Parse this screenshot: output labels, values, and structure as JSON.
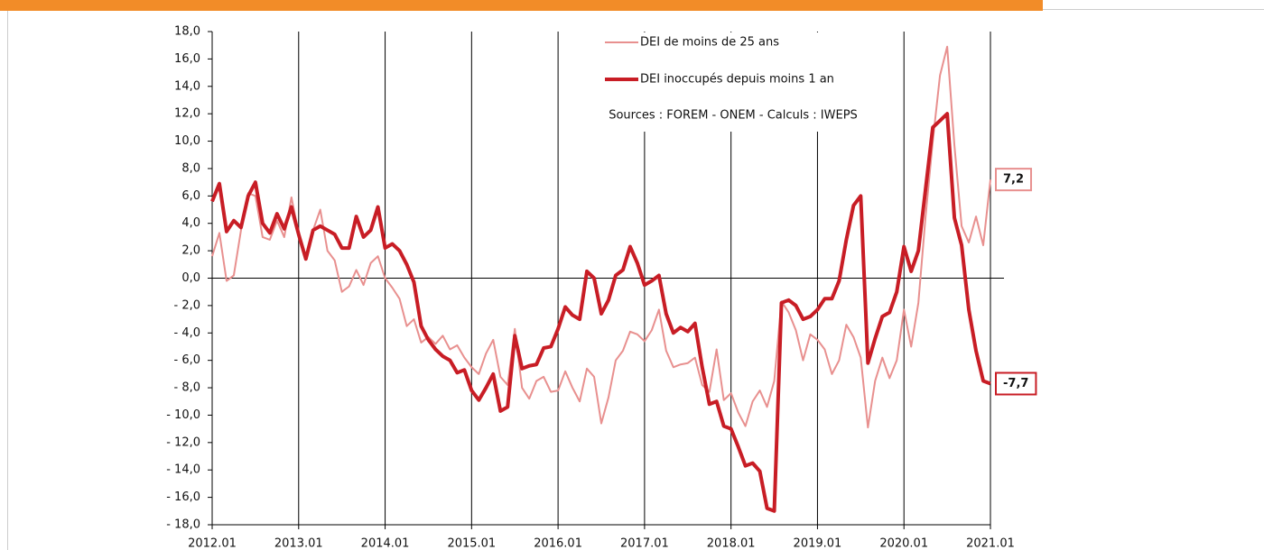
{
  "chart_data": {
    "type": "line",
    "categories": [
      "2012.01",
      null,
      null,
      null,
      null,
      null,
      null,
      null,
      null,
      null,
      null,
      null,
      "2013.01",
      null,
      null,
      null,
      null,
      null,
      null,
      null,
      null,
      null,
      null,
      null,
      "2014.01",
      null,
      null,
      null,
      null,
      null,
      null,
      null,
      null,
      null,
      null,
      null,
      "2015.01",
      null,
      null,
      null,
      null,
      null,
      null,
      null,
      null,
      null,
      null,
      null,
      "2016.01",
      null,
      null,
      null,
      null,
      null,
      null,
      null,
      null,
      null,
      null,
      null,
      "2017.01",
      null,
      null,
      null,
      null,
      null,
      null,
      null,
      null,
      null,
      null,
      null,
      "2018.01",
      null,
      null,
      null,
      null,
      null,
      null,
      null,
      null,
      null,
      null,
      null,
      "2019.01",
      null,
      null,
      null,
      null,
      null,
      null,
      null,
      null,
      null,
      null,
      null,
      "2020.01",
      null,
      null,
      null,
      null,
      null,
      null,
      null,
      null,
      null,
      null,
      null,
      "2021.01"
    ],
    "series": [
      {
        "name": "DEI de moins de 25 ans",
        "color": "#e8908f",
        "width": 2,
        "values": [
          1.6,
          3.3,
          -0.2,
          0.2,
          3.5,
          6.2,
          6.0,
          3.0,
          2.8,
          4.2,
          3.0,
          5.9,
          3.3,
          1.5,
          3.5,
          5.0,
          2.0,
          1.3,
          -1.0,
          -0.6,
          0.6,
          -0.5,
          1.1,
          1.6,
          0.0,
          -0.7,
          -1.5,
          -3.5,
          -3.0,
          -4.7,
          -4.3,
          -4.8,
          -4.2,
          -5.2,
          -4.9,
          -5.8,
          -6.5,
          -7.0,
          -5.5,
          -4.5,
          -7.2,
          -7.8,
          -3.7,
          -8.0,
          -8.8,
          -7.5,
          -7.2,
          -8.3,
          -8.2,
          -6.8,
          -8.0,
          -9.0,
          -6.6,
          -7.2,
          -10.6,
          -8.7,
          -6.0,
          -5.3,
          -3.9,
          -4.1,
          -4.6,
          -3.8,
          -2.3,
          -5.3,
          -6.5,
          -6.3,
          -6.2,
          -5.8,
          -7.8,
          -8.3,
          -5.2,
          -8.9,
          -8.4,
          -9.8,
          -10.8,
          -9.0,
          -8.2,
          -9.4,
          -7.5,
          -1.7,
          -2.5,
          -3.8,
          -6.0,
          -4.1,
          -4.5,
          -5.2,
          -7.0,
          -6.0,
          -3.4,
          -4.3,
          -5.8,
          -10.9,
          -7.5,
          -5.8,
          -7.3,
          -6.0,
          -2.3,
          -5.0,
          -1.8,
          4.5,
          10.0,
          14.8,
          16.9,
          9.7,
          3.8,
          2.6,
          4.5,
          2.4,
          7.2
        ],
        "value_labels": [
          null,
          null,
          null,
          null,
          null,
          null,
          null,
          null,
          null,
          null,
          null,
          null,
          null,
          null,
          null,
          null,
          null,
          null,
          null,
          null,
          null,
          null,
          null,
          null,
          null,
          null,
          null,
          null,
          null,
          null,
          null,
          null,
          null,
          null,
          null,
          null,
          null,
          null,
          null,
          null,
          null,
          null,
          null,
          null,
          null,
          null,
          null,
          null,
          null,
          null,
          null,
          null,
          null,
          null,
          null,
          null,
          null,
          null,
          null,
          null,
          null,
          null,
          null,
          null,
          null,
          null,
          null,
          null,
          null,
          null,
          null,
          null,
          null,
          null,
          null,
          null,
          null,
          null,
          null,
          null,
          null,
          null,
          null,
          null,
          null,
          null,
          null,
          null,
          null,
          null,
          null,
          null,
          null,
          null,
          null,
          null,
          null,
          null,
          null,
          null,
          null,
          null,
          null,
          null,
          null,
          null,
          null,
          null,
          "7,2"
        ]
      },
      {
        "name": "DEI inoccupés depuis moins 1 an",
        "color": "#c81d25",
        "width": 4,
        "values": [
          5.6,
          6.9,
          3.4,
          4.2,
          3.7,
          6.0,
          7.0,
          4.0,
          3.3,
          4.7,
          3.6,
          5.2,
          3.2,
          1.4,
          3.5,
          3.8,
          3.5,
          3.2,
          2.2,
          2.2,
          4.5,
          3.0,
          3.5,
          5.2,
          2.2,
          2.5,
          2.0,
          1.0,
          -0.3,
          -3.5,
          -4.5,
          -5.2,
          -5.7,
          -6.0,
          -6.9,
          -6.7,
          -8.2,
          -8.9,
          -8.0,
          -7.0,
          -9.7,
          -9.4,
          -4.2,
          -6.6,
          -6.4,
          -6.3,
          -5.1,
          -5.0,
          -3.7,
          -2.1,
          -2.7,
          -3.0,
          0.5,
          0.0,
          -2.6,
          -1.6,
          0.2,
          0.6,
          2.3,
          1.1,
          -0.5,
          -0.2,
          0.2,
          -2.6,
          -4.0,
          -3.6,
          -3.9,
          -3.3,
          -6.5,
          -9.2,
          -9.0,
          -10.8,
          -11.0,
          -12.3,
          -13.7,
          -13.5,
          -14.1,
          -16.8,
          -17.0,
          -1.8,
          -1.6,
          -2.0,
          -3.0,
          -2.8,
          -2.3,
          -1.5,
          -1.5,
          -0.2,
          2.8,
          5.3,
          6.0,
          -6.2,
          -4.4,
          -2.8,
          -2.5,
          -1.0,
          2.3,
          0.5,
          2.0,
          6.5,
          11.0,
          11.5,
          12.0,
          4.4,
          2.4,
          -2.3,
          -5.3,
          -7.5,
          -7.7
        ],
        "value_labels": [
          null,
          null,
          null,
          null,
          null,
          null,
          null,
          null,
          null,
          null,
          null,
          null,
          null,
          null,
          null,
          null,
          null,
          null,
          null,
          null,
          null,
          null,
          null,
          null,
          null,
          null,
          null,
          null,
          null,
          null,
          null,
          null,
          null,
          null,
          null,
          null,
          null,
          null,
          null,
          null,
          null,
          null,
          null,
          null,
          null,
          null,
          null,
          null,
          null,
          null,
          null,
          null,
          null,
          null,
          null,
          null,
          null,
          null,
          null,
          null,
          null,
          null,
          null,
          null,
          null,
          null,
          null,
          null,
          null,
          null,
          null,
          null,
          null,
          null,
          null,
          null,
          null,
          null,
          null,
          null,
          null,
          null,
          null,
          null,
          null,
          null,
          null,
          null,
          null,
          null,
          null,
          null,
          null,
          null,
          null,
          null,
          null,
          null,
          null,
          null,
          null,
          null,
          null,
          null,
          null,
          null,
          null,
          null,
          "-7,7"
        ]
      }
    ],
    "note": "Sources : FOREM - ONEM - Calculs : IWEPS",
    "ylim": [
      -18,
      18
    ],
    "yticks": [
      {
        "value": -18,
        "label": "- 18,0"
      },
      {
        "value": -16,
        "label": "- 16,0"
      },
      {
        "value": -14,
        "label": "- 14,0"
      },
      {
        "value": -12,
        "label": "- 12,0"
      },
      {
        "value": -10,
        "label": "- 10,0"
      },
      {
        "value": -8,
        "label": "- 8,0"
      },
      {
        "value": -6,
        "label": "- 6,0"
      },
      {
        "value": -4,
        "label": "- 4,0"
      },
      {
        "value": -2,
        "label": "- 2,0"
      },
      {
        "value": 0,
        "label": "0,0"
      },
      {
        "value": 2,
        "label": "2,0"
      },
      {
        "value": 4,
        "label": "4,0"
      },
      {
        "value": 6,
        "label": "6,0"
      },
      {
        "value": 8,
        "label": "8,0"
      },
      {
        "value": 10,
        "label": "10,0"
      },
      {
        "value": 12,
        "label": "12,0"
      },
      {
        "value": 14,
        "label": "14,0"
      },
      {
        "value": 16,
        "label": "16,0"
      },
      {
        "value": 18,
        "label": "18,0"
      }
    ]
  }
}
